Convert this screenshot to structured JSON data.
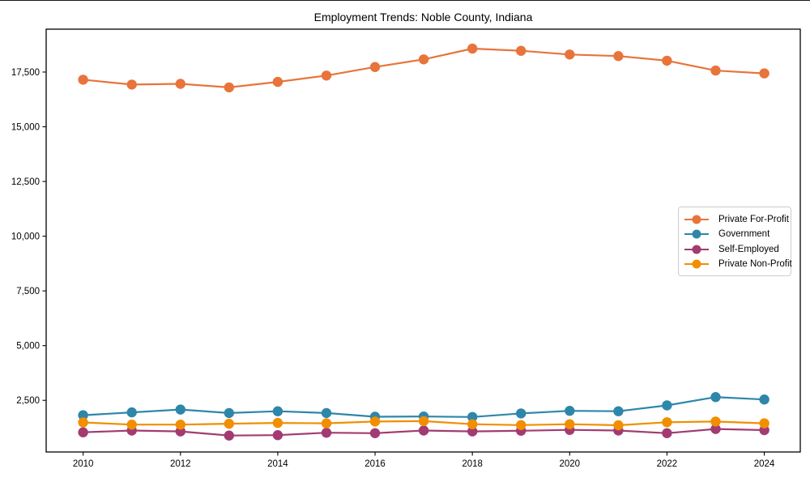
{
  "chart_data": {
    "type": "line",
    "title": "Employment Trends: Noble County, Indiana",
    "xlabel": "",
    "ylabel": "",
    "x": [
      2010,
      2011,
      2012,
      2013,
      2014,
      2015,
      2016,
      2017,
      2018,
      2019,
      2020,
      2021,
      2022,
      2023,
      2024
    ],
    "series": [
      {
        "name": "Private For-Profit",
        "color": "#E8743B",
        "values": [
          17150,
          16930,
          16960,
          16800,
          17050,
          17340,
          17730,
          18080,
          18570,
          18470,
          18300,
          18230,
          18020,
          17570,
          17440
        ]
      },
      {
        "name": "Government",
        "color": "#2E86AB",
        "values": [
          1820,
          1950,
          2080,
          1920,
          2000,
          1920,
          1750,
          1760,
          1740,
          1900,
          2020,
          2000,
          2270,
          2650,
          2540
        ]
      },
      {
        "name": "Self-Employed",
        "color": "#A23B72",
        "values": [
          1040,
          1120,
          1080,
          890,
          910,
          1020,
          1000,
          1120,
          1080,
          1110,
          1150,
          1120,
          1000,
          1190,
          1140
        ]
      },
      {
        "name": "Private Non-Profit",
        "color": "#F18F01",
        "values": [
          1490,
          1390,
          1390,
          1430,
          1470,
          1450,
          1530,
          1550,
          1410,
          1370,
          1410,
          1360,
          1500,
          1530,
          1450
        ]
      }
    ],
    "xticks": [
      2010,
      2012,
      2014,
      2016,
      2018,
      2020,
      2022,
      2024
    ],
    "xtick_labels": [
      "2010",
      "2012",
      "2014",
      "2016",
      "2018",
      "2020",
      "2022",
      "2024"
    ],
    "yticks": [
      2500,
      5000,
      7500,
      10000,
      12500,
      15000,
      17500
    ],
    "ytick_labels": [
      "2,500",
      "5,000",
      "7,500",
      "10,000",
      "12,500",
      "15,000",
      "17,500"
    ],
    "xlim": [
      2009.24,
      2024.74
    ],
    "ylim": [
      140,
      19460
    ],
    "grid": false,
    "legend_position": "right-middle",
    "axis_color": "#000000",
    "background_color": "#ffffff"
  }
}
